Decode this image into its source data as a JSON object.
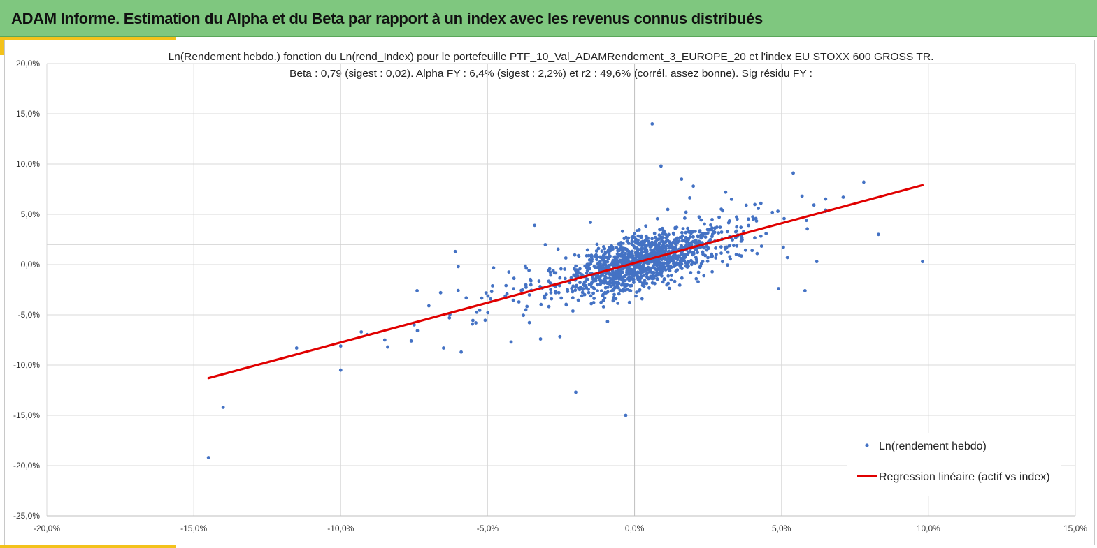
{
  "header": {
    "title": "ADAM Informe. Estimation du Alpha et du Beta par rapport à un index avec les revenus connus distribués"
  },
  "colors": {
    "banner": "#7fc77f",
    "accent": "#f3c21b",
    "points": "#4472c4",
    "regression": "#e00000",
    "grid": "#d9d9d9"
  },
  "chart_data": {
    "type": "scatter",
    "title_line1": "Ln(Rendement hebdo.) fonction du Ln(rend_Index) pour le portefeuille PTF_10_Val_ADAMRendement_3_EUROPE_20 et l'index EU STOXX 600 GROSS TR.",
    "title_line2": "Beta : 0,79 (sigest : 0,02). Alpha FY : 6,4% (sigest : 2,2%) et r2 : 49,6% (corrél. assez bonne). Sig résidu FY :",
    "xlim": [
      -20,
      15
    ],
    "ylim": [
      -25,
      20
    ],
    "x_ticks": [
      -20,
      -15,
      -10,
      -5,
      0,
      5,
      10,
      15
    ],
    "y_ticks": [
      -25,
      -20,
      -15,
      -10,
      -5,
      0,
      5,
      10,
      15,
      20
    ],
    "x_tick_labels": [
      "-20,0%",
      "-15,0%",
      "-10,0%",
      "-5,0%",
      "0,0%",
      "5,0%",
      "10,0%",
      "15,0%"
    ],
    "y_tick_labels": [
      "-25,0%",
      "-20,0%",
      "-15,0%",
      "-10,0%",
      "-5,0%",
      "0,0%",
      "5,0%",
      "10,0%",
      "15,0%",
      "20,0%"
    ],
    "legend": [
      "Ln(rendement hebdo)",
      "Regression linéaire (actif vs index)"
    ],
    "legend_position": "bottom-right",
    "regression": {
      "name": "Regression linéaire (actif vs index)",
      "x": [
        -14.5,
        9.8
      ],
      "y": [
        -11.3,
        7.9
      ]
    },
    "outliers": {
      "x": [
        -14.5,
        -14.0,
        -11.5,
        -10.0,
        -10.0,
        -9.3,
        -8.5,
        -8.4,
        -7.6,
        -7.5,
        -7.4,
        -7.0,
        -6.6,
        -6.5,
        -6.3,
        -6.1,
        -6.0,
        -5.9,
        -5.4,
        -4.2,
        -3.7,
        -3.4,
        -3.2,
        -2.0,
        -1.5,
        -0.3,
        0.6,
        0.9,
        1.6,
        2.0,
        3.1,
        3.3,
        3.8,
        4.3,
        5.2,
        5.4,
        5.7,
        5.8,
        6.2,
        6.5,
        7.1,
        7.8,
        8.3,
        9.8,
        4.9,
        4.0
      ],
      "y": [
        -19.2,
        -14.2,
        -8.3,
        -8.1,
        -10.5,
        -6.7,
        -7.5,
        -8.2,
        -7.6,
        -6.0,
        -2.6,
        -4.1,
        -2.8,
        -8.3,
        -5.3,
        1.3,
        -0.2,
        -8.7,
        -5.8,
        -7.7,
        -4.5,
        3.9,
        -7.4,
        -12.7,
        4.2,
        -15.0,
        14.0,
        9.8,
        8.5,
        7.8,
        7.2,
        6.5,
        5.9,
        6.1,
        0.7,
        9.1,
        6.8,
        -2.6,
        0.3,
        5.3,
        6.7,
        8.2,
        3.0,
        0.3,
        -2.4,
        1.4
      ]
    },
    "cloud": {
      "name": "Ln(rendement hebdo)",
      "count": 1300,
      "beta": 0.79,
      "alpha_weekly": 0.12
    }
  }
}
